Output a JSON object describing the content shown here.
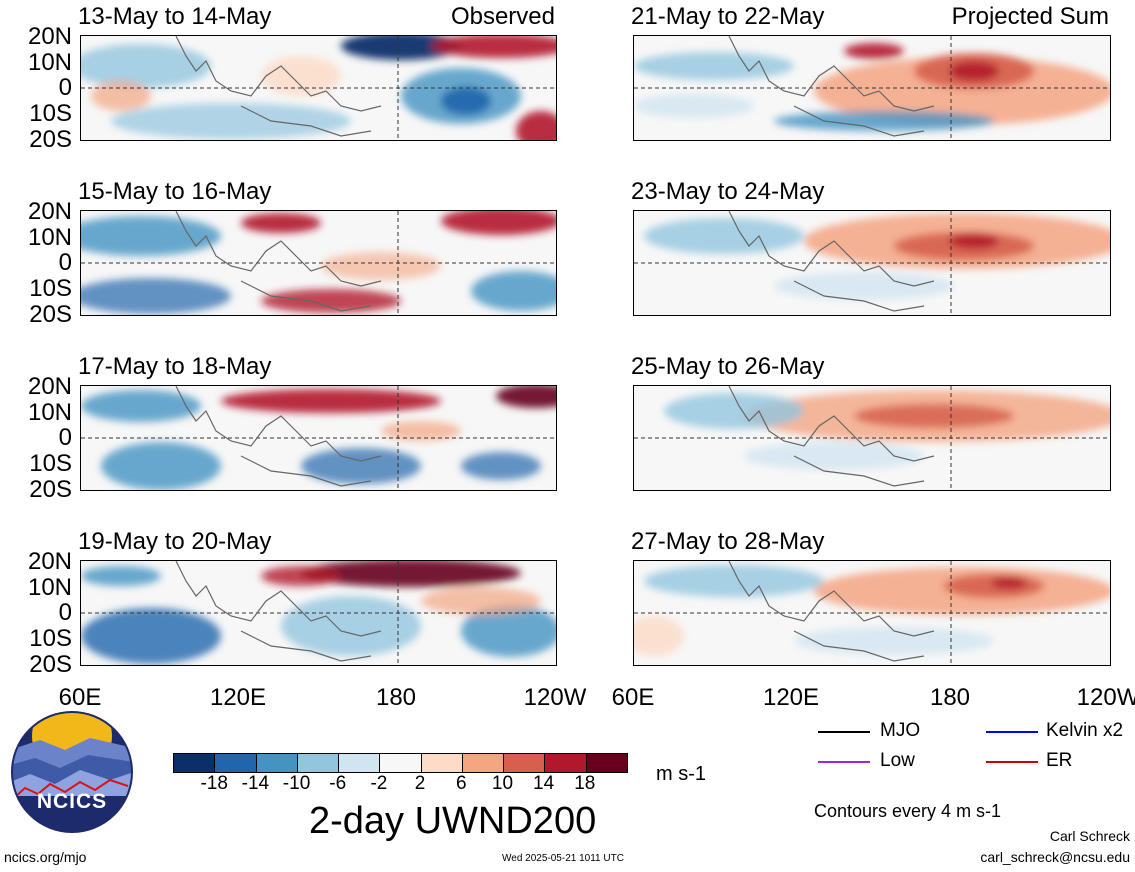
{
  "panels": [
    {
      "id": "p1",
      "title": "13-May to 14-May",
      "tag": "Observed",
      "fill": "obs"
    },
    {
      "id": "p2",
      "title": "15-May to 16-May",
      "tag": "",
      "fill": "obs"
    },
    {
      "id": "p3",
      "title": "17-May to 18-May",
      "tag": "",
      "fill": "obs"
    },
    {
      "id": "p4",
      "title": "19-May to 20-May",
      "tag": "",
      "fill": "obs"
    },
    {
      "id": "p5",
      "title": "21-May to 22-May",
      "tag": "Projected Sum",
      "fill": "proj"
    },
    {
      "id": "p6",
      "title": "23-May to 24-May",
      "tag": "",
      "fill": "proj"
    },
    {
      "id": "p7",
      "title": "25-May to 26-May",
      "tag": "",
      "fill": "proj"
    },
    {
      "id": "p8",
      "title": "27-May to 28-May",
      "tag": "",
      "fill": "proj"
    }
  ],
  "lat_labels": [
    "20N",
    "10N",
    "0",
    "10S",
    "20S"
  ],
  "lon_labels": [
    "60E",
    "120E",
    "180",
    "120W"
  ],
  "colorbar": {
    "colors": [
      "#0a2f6b",
      "#2166ac",
      "#4393c3",
      "#92c5de",
      "#d1e5f0",
      "#f7f7f7",
      "#fddbc7",
      "#f4a582",
      "#d6604d",
      "#b2182b",
      "#67001f"
    ],
    "labels": [
      "-18",
      "-14",
      "-10",
      "-6",
      "-2",
      "2",
      "6",
      "10",
      "14",
      "18"
    ],
    "unit": "m s-1"
  },
  "main_title": "2-day UWND200",
  "legend": [
    {
      "label": "MJO",
      "color": "#000000"
    },
    {
      "label": "Kelvin x2",
      "color": "#0000ff"
    },
    {
      "label": "Low",
      "color": "#a020f0"
    },
    {
      "label": "ER",
      "color": "#cc0000"
    }
  ],
  "contour_note": "Contours every 4 m s-1",
  "author": "Carl Schreck",
  "email": "carl_schreck@ncsu.edu",
  "website": "ncics.org/mjo",
  "timestamp": "Wed 2025-05-21 1011 UTC",
  "logo_text": "NCICS",
  "colors": {
    "contour_low": "#a020f0",
    "coast": "#666666"
  }
}
